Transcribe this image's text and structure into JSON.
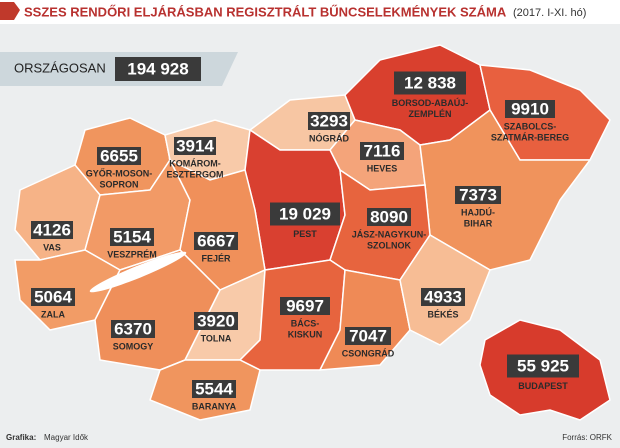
{
  "header": {
    "title": "SSZES RENDŐRI ELJÁRÁSBAN REGISZTRÁLT BŰNCSELEKMÉNYEK SZÁMA",
    "subtitle": "(2017. I-XI. hó)"
  },
  "national": {
    "label": "ORSZÁGOSAN",
    "value": "194 928"
  },
  "counties": [
    {
      "name": [
        "GYŐR-MOSON-",
        "SOPRON"
      ],
      "value": "6655",
      "color": "#f0955e"
    },
    {
      "name": [
        "KOMÁROM-",
        "ESZTERGOM"
      ],
      "value": "3914",
      "color": "#f8caa9"
    },
    {
      "name": [
        "NÓGRÁD"
      ],
      "value": "3293",
      "color": "#f7c6a3"
    },
    {
      "name": [
        "BORSOD-ABAÚJ-",
        "ZEMPLÉN"
      ],
      "value": "12 838",
      "color": "#d9402e"
    },
    {
      "name": [
        "SZABOLCS-",
        "SZATMÁR-BEREG"
      ],
      "value": "9910",
      "color": "#e8603f"
    },
    {
      "name": [
        "HEVES"
      ],
      "value": "7116",
      "color": "#f4a47a"
    },
    {
      "name": [
        "HAJDÚ-",
        "BIHAR"
      ],
      "value": "7373",
      "color": "#f0935c"
    },
    {
      "name": [
        "PEST"
      ],
      "value": "19 029",
      "color": "#d94030"
    },
    {
      "name": [
        "JÁSZ-NAGYKUN-",
        "SZOLNOK"
      ],
      "value": "8090",
      "color": "#e7643e"
    },
    {
      "name": [
        "VAS"
      ],
      "value": "4126",
      "color": "#f6b387"
    },
    {
      "name": [
        "VESZPRÉM"
      ],
      "value": "5154",
      "color": "#f29a66"
    },
    {
      "name": [
        "FEJÉR"
      ],
      "value": "6667",
      "color": "#f0905a"
    },
    {
      "name": [
        "ZALA"
      ],
      "value": "5064",
      "color": "#f29c66"
    },
    {
      "name": [
        "SOMOGY"
      ],
      "value": "6370",
      "color": "#ef8f5a"
    },
    {
      "name": [
        "TOLNA"
      ],
      "value": "3920",
      "color": "#f8caa9"
    },
    {
      "name": [
        "BÁCS-",
        "KISKUN"
      ],
      "value": "9697",
      "color": "#e7643e"
    },
    {
      "name": [
        "CSONGRÁD"
      ],
      "value": "7047",
      "color": "#ef8a56"
    },
    {
      "name": [
        "BÉKÉS"
      ],
      "value": "4933",
      "color": "#f7bd95"
    },
    {
      "name": [
        "BARANYA"
      ],
      "value": "5544",
      "color": "#f0955e"
    },
    {
      "name": [
        "BUDAPEST"
      ],
      "value": "55 925",
      "color": "#d73b2c"
    }
  ],
  "footer": {
    "credit_label": "Grafika:",
    "credit": "Magyar Idők",
    "source": "Forrás: ORFK"
  }
}
